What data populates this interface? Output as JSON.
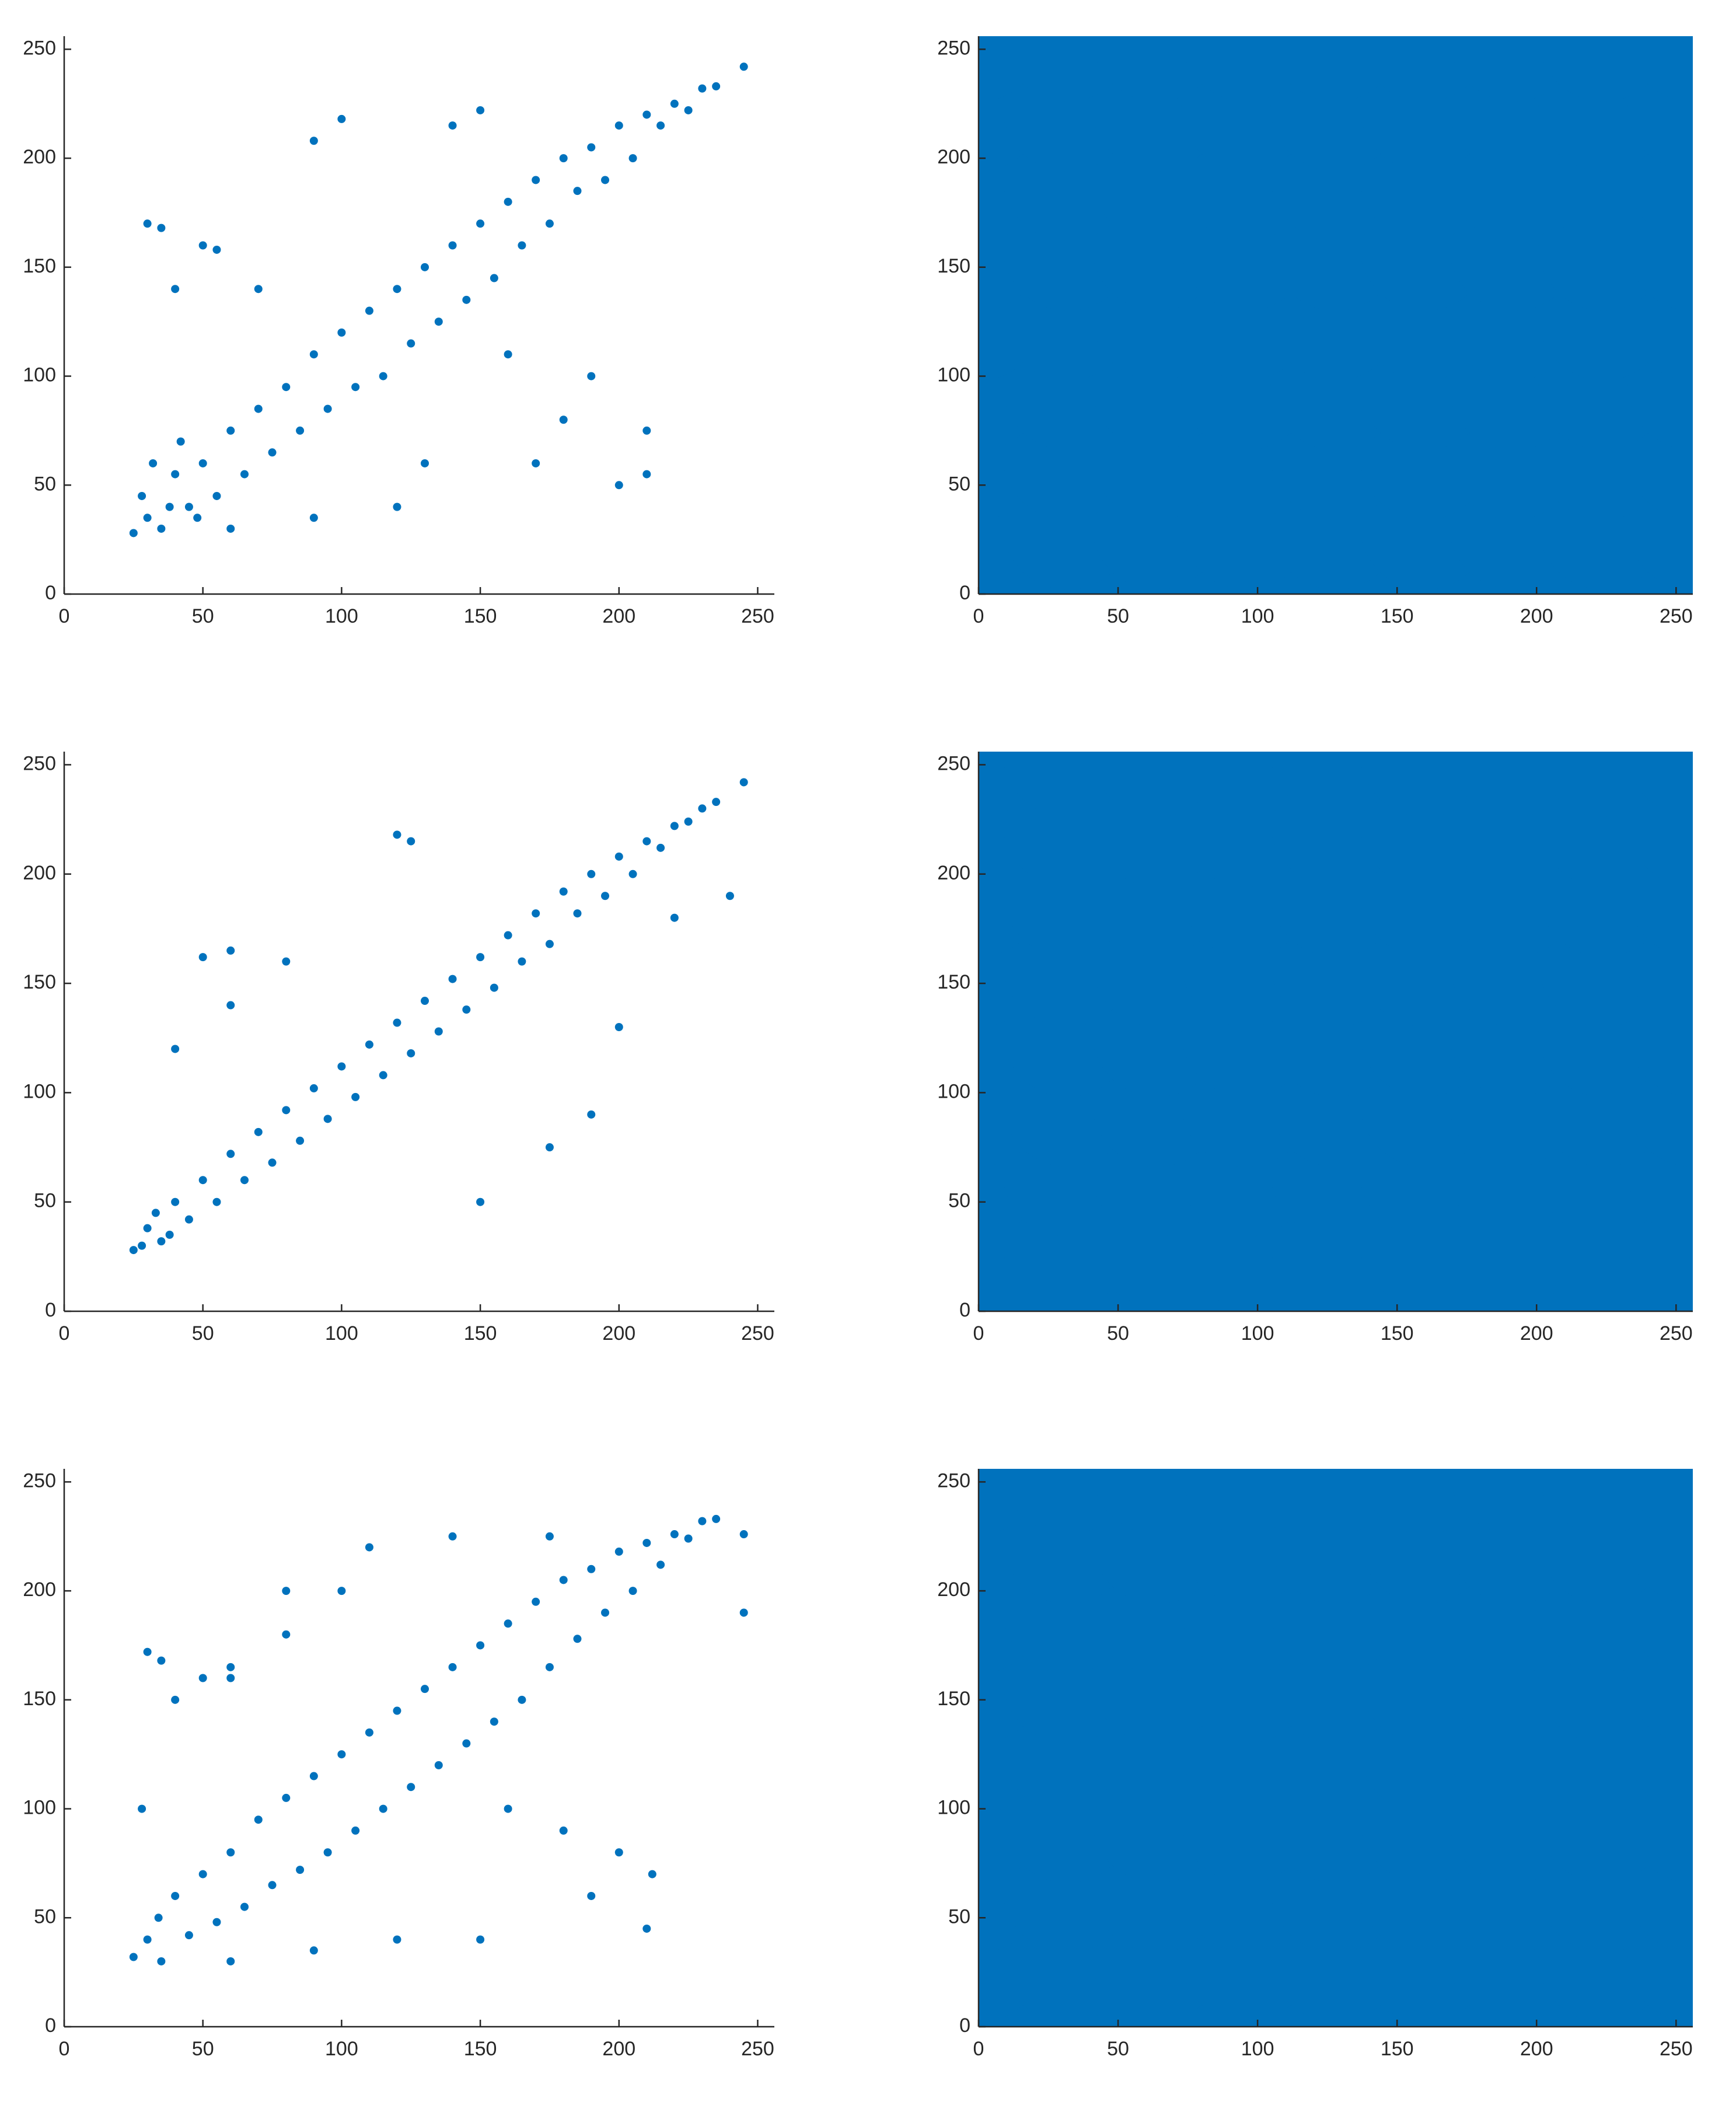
{
  "chart_data": [
    {
      "type": "scatter",
      "color": "#0072bd",
      "xlim": [
        0,
        256
      ],
      "ylim": [
        0,
        256
      ],
      "xticks": [
        0,
        50,
        100,
        150,
        200,
        250
      ],
      "yticks": [
        0,
        50,
        100,
        150,
        200,
        250
      ],
      "x": [
        25,
        30,
        35,
        40,
        45,
        50,
        55,
        60,
        65,
        70,
        75,
        80,
        85,
        90,
        95,
        100,
        105,
        110,
        115,
        120,
        125,
        130,
        135,
        140,
        145,
        150,
        155,
        160,
        165,
        170,
        175,
        180,
        185,
        190,
        195,
        200,
        205,
        210,
        215,
        220,
        225,
        230,
        235,
        245,
        30,
        35,
        50,
        55,
        90,
        100,
        140,
        150,
        170,
        180,
        190,
        200,
        210,
        210,
        60,
        90,
        120,
        40,
        70,
        160,
        130,
        28,
        32,
        38,
        42,
        48
      ],
      "y": [
        28,
        35,
        30,
        55,
        40,
        60,
        45,
        75,
        55,
        85,
        65,
        95,
        75,
        110,
        85,
        120,
        95,
        130,
        100,
        140,
        115,
        150,
        125,
        160,
        135,
        170,
        145,
        180,
        160,
        190,
        170,
        200,
        185,
        205,
        190,
        215,
        200,
        220,
        215,
        225,
        222,
        232,
        233,
        242,
        170,
        168,
        160,
        158,
        208,
        218,
        215,
        222,
        60,
        80,
        100,
        50,
        75,
        55,
        30,
        35,
        40,
        140,
        140,
        110,
        60,
        45,
        60,
        40,
        70,
        35
      ]
    },
    {
      "type": "scatter",
      "color": "#0072bd",
      "xlim": [
        0,
        256
      ],
      "ylim": [
        0,
        256
      ],
      "xticks": [
        0,
        50,
        100,
        150,
        200,
        250
      ],
      "yticks": [
        0,
        50,
        100,
        150,
        200,
        250
      ],
      "x": [
        25,
        30,
        35,
        40,
        45,
        50,
        55,
        60,
        65,
        70,
        75,
        80,
        85,
        90,
        95,
        100,
        105,
        110,
        115,
        120,
        125,
        130,
        135,
        140,
        145,
        150,
        155,
        160,
        165,
        170,
        175,
        180,
        185,
        190,
        195,
        200,
        205,
        210,
        215,
        220,
        225,
        230,
        235,
        245,
        50,
        60,
        120,
        125,
        200,
        190,
        175,
        150,
        40,
        60,
        80,
        28,
        33,
        38,
        220,
        240
      ],
      "y": [
        28,
        38,
        32,
        50,
        42,
        60,
        50,
        72,
        60,
        82,
        68,
        92,
        78,
        102,
        88,
        112,
        98,
        122,
        108,
        132,
        118,
        142,
        128,
        152,
        138,
        162,
        148,
        172,
        160,
        182,
        168,
        192,
        182,
        200,
        190,
        208,
        200,
        215,
        212,
        222,
        224,
        230,
        233,
        242,
        162,
        165,
        218,
        215,
        130,
        90,
        75,
        50,
        120,
        140,
        160,
        30,
        45,
        35,
        180,
        190
      ]
    },
    {
      "type": "scatter",
      "color": "#0072bd",
      "xlim": [
        0,
        256
      ],
      "ylim": [
        0,
        256
      ],
      "xticks": [
        0,
        50,
        100,
        150,
        200,
        250
      ],
      "yticks": [
        0,
        50,
        100,
        150,
        200,
        250
      ],
      "x": [
        25,
        30,
        35,
        40,
        45,
        50,
        55,
        60,
        65,
        70,
        75,
        80,
        85,
        90,
        95,
        100,
        105,
        110,
        115,
        120,
        125,
        130,
        135,
        140,
        145,
        150,
        155,
        160,
        165,
        170,
        175,
        180,
        185,
        190,
        195,
        200,
        205,
        210,
        215,
        220,
        225,
        230,
        235,
        245,
        30,
        35,
        50,
        60,
        80,
        110,
        140,
        175,
        190,
        200,
        210,
        212,
        60,
        90,
        120,
        150,
        40,
        60,
        80,
        100,
        160,
        180,
        28,
        34,
        245
      ],
      "y": [
        32,
        40,
        30,
        60,
        42,
        70,
        48,
        80,
        55,
        95,
        65,
        105,
        72,
        115,
        80,
        125,
        90,
        135,
        100,
        145,
        110,
        155,
        120,
        165,
        130,
        175,
        140,
        185,
        150,
        195,
        165,
        205,
        178,
        210,
        190,
        218,
        200,
        222,
        212,
        226,
        224,
        232,
        233,
        226,
        172,
        168,
        160,
        165,
        200,
        220,
        225,
        225,
        60,
        80,
        45,
        70,
        30,
        35,
        40,
        40,
        150,
        160,
        180,
        200,
        100,
        90,
        100,
        50,
        190
      ]
    },
    {
      "type": "scatter",
      "color": "#0072bd",
      "xlim": [
        0,
        256
      ],
      "ylim": [
        0,
        256
      ],
      "xticks": [
        0,
        50,
        100,
        150,
        200,
        250
      ],
      "yticks": [
        0,
        50,
        100,
        150,
        200,
        250
      ],
      "x": [
        0,
        32,
        64,
        96,
        128,
        160,
        192,
        224,
        256,
        0,
        32,
        64,
        96,
        128,
        160,
        192,
        224,
        256,
        0,
        32,
        64,
        96,
        128,
        160,
        192,
        224,
        256,
        0,
        32,
        64,
        96,
        128,
        160,
        192,
        224,
        256,
        0,
        32,
        64,
        96,
        128,
        160,
        192,
        224,
        256,
        0,
        32,
        64,
        96,
        128,
        160,
        192,
        224,
        256,
        0,
        32,
        64,
        96,
        128,
        160,
        192,
        224,
        256,
        0,
        32,
        64,
        96,
        128,
        160,
        192,
        224,
        256,
        0,
        32,
        64,
        96,
        128,
        160,
        192,
        224,
        256
      ],
      "y": [
        0,
        0,
        0,
        0,
        0,
        0,
        0,
        0,
        0,
        32,
        32,
        32,
        32,
        32,
        32,
        32,
        32,
        32,
        64,
        64,
        64,
        64,
        64,
        64,
        64,
        64,
        64,
        96,
        96,
        96,
        96,
        96,
        96,
        96,
        96,
        96,
        128,
        128,
        128,
        128,
        128,
        128,
        128,
        128,
        128,
        160,
        160,
        160,
        160,
        160,
        160,
        160,
        160,
        160,
        192,
        192,
        192,
        192,
        192,
        192,
        192,
        192,
        192,
        224,
        224,
        224,
        224,
        224,
        224,
        224,
        224,
        224,
        256,
        256,
        256,
        256,
        256,
        256,
        256,
        256,
        256
      ]
    },
    {
      "type": "scatter",
      "color": "#0072bd",
      "xlim": [
        0,
        256
      ],
      "ylim": [
        0,
        256
      ],
      "xticks": [
        0,
        50,
        100,
        150,
        200,
        250
      ],
      "yticks": [
        0,
        50,
        100,
        150,
        200,
        250
      ],
      "x": [
        0,
        32,
        64,
        96,
        128,
        160,
        192,
        224,
        256,
        0,
        32,
        64,
        96,
        128,
        160,
        192,
        224,
        256,
        0,
        32,
        64,
        96,
        128,
        160,
        192,
        224,
        256,
        0,
        32,
        64,
        96,
        128,
        160,
        192,
        224,
        256,
        0,
        32,
        64,
        96,
        128,
        160,
        192,
        224,
        256,
        0,
        32,
        64,
        96,
        128,
        160,
        192,
        224,
        256,
        0,
        32,
        64,
        96,
        128,
        160,
        192,
        224,
        256,
        0,
        32,
        64,
        96,
        128,
        160,
        192,
        224,
        256,
        0,
        32,
        64,
        96,
        128,
        160,
        192,
        224,
        256
      ],
      "y": [
        0,
        0,
        0,
        0,
        0,
        0,
        0,
        0,
        0,
        32,
        32,
        32,
        32,
        32,
        32,
        32,
        32,
        32,
        64,
        64,
        64,
        64,
        64,
        64,
        64,
        64,
        64,
        96,
        96,
        96,
        96,
        96,
        96,
        96,
        96,
        96,
        128,
        128,
        128,
        128,
        128,
        128,
        128,
        128,
        128,
        160,
        160,
        160,
        160,
        160,
        160,
        160,
        160,
        160,
        192,
        192,
        192,
        192,
        192,
        192,
        192,
        192,
        192,
        224,
        224,
        224,
        224,
        224,
        224,
        224,
        224,
        224,
        256,
        256,
        256,
        256,
        256,
        256,
        256,
        256,
        256
      ]
    },
    {
      "type": "scatter",
      "color": "#0072bd",
      "xlim": [
        0,
        256
      ],
      "ylim": [
        0,
        256
      ],
      "xticks": [
        0,
        50,
        100,
        150,
        200,
        250
      ],
      "yticks": [
        0,
        50,
        100,
        150,
        200,
        250
      ],
      "x": [
        0,
        32,
        64,
        96,
        128,
        160,
        192,
        224,
        256,
        0,
        32,
        64,
        96,
        128,
        160,
        192,
        224,
        256,
        0,
        32,
        64,
        96,
        128,
        160,
        192,
        224,
        256,
        0,
        32,
        64,
        96,
        128,
        160,
        192,
        224,
        256,
        0,
        32,
        64,
        96,
        128,
        160,
        192,
        224,
        256,
        0,
        32,
        64,
        96,
        128,
        160,
        192,
        224,
        256,
        0,
        32,
        64,
        96,
        128,
        160,
        192,
        224,
        256,
        0,
        32,
        64,
        96,
        128,
        160,
        192,
        224,
        256,
        0,
        32,
        64,
        96,
        128,
        160,
        192,
        224,
        256
      ],
      "y": [
        0,
        0,
        0,
        0,
        0,
        0,
        0,
        0,
        0,
        32,
        32,
        32,
        32,
        32,
        32,
        32,
        32,
        32,
        64,
        64,
        64,
        64,
        64,
        64,
        64,
        64,
        64,
        96,
        96,
        96,
        96,
        96,
        96,
        96,
        96,
        96,
        128,
        128,
        128,
        128,
        128,
        128,
        128,
        128,
        128,
        160,
        160,
        160,
        160,
        160,
        160,
        160,
        160,
        160,
        192,
        192,
        192,
        192,
        192,
        192,
        192,
        192,
        192,
        224,
        224,
        224,
        224,
        224,
        224,
        224,
        224,
        224,
        256,
        256,
        256,
        256,
        256,
        256,
        256,
        256,
        256
      ]
    }
  ]
}
